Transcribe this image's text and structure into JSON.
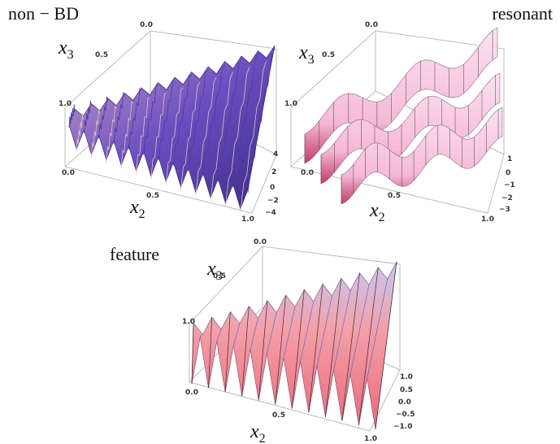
{
  "panels": [
    {
      "title": "non − BD",
      "x3_label": {
        "base": "x",
        "sub": "3"
      },
      "x2_label": {
        "base": "x",
        "sub": "2"
      },
      "x3_ticks": [
        "0.0",
        "0.5",
        "1.0"
      ],
      "x2_ticks": [
        "0.0",
        "0.5",
        "1.0"
      ],
      "z_ticks": [
        "4",
        "2",
        "0",
        "−2",
        "−4"
      ]
    },
    {
      "title": "resonant",
      "x3_label": {
        "base": "x",
        "sub": "3"
      },
      "x2_label": {
        "base": "x",
        "sub": "2"
      },
      "x3_ticks": [
        "0.0",
        "0.5",
        "1.0"
      ],
      "x2_ticks": [
        "0.0",
        "0.5",
        "1.0"
      ],
      "z_ticks": [
        "1",
        "0",
        "−1",
        "−2",
        "−3"
      ]
    },
    {
      "title": "feature",
      "x3_label": {
        "base": "x",
        "sub": "3"
      },
      "x2_label": {
        "base": "x",
        "sub": "2"
      },
      "x3_ticks": [
        "0.0",
        "0.5",
        "1.0"
      ],
      "x2_ticks": [
        "0.0",
        "0.5",
        "1.0"
      ],
      "z_ticks": [
        "1.0",
        "0.5",
        "0.0",
        "−0.5",
        "−1.0"
      ]
    }
  ]
}
